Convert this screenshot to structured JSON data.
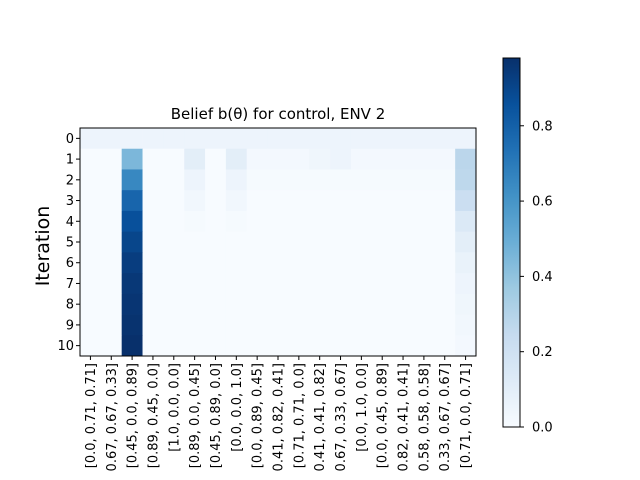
{
  "chart_data": {
    "type": "heatmap",
    "title": "Belief b(θ) for control, ENV 2",
    "xlabel": "",
    "ylabel": "Iteration",
    "colormap": "Blues",
    "colorbar_range": [
      0,
      0.98
    ],
    "colorbar_ticks": [
      "0.0",
      "0.2",
      "0.4",
      "0.6",
      "0.8"
    ],
    "y_ticks": [
      "0",
      "1",
      "2",
      "3",
      "4",
      "5",
      "6",
      "7",
      "8",
      "9",
      "10"
    ],
    "x_tick_labels": [
      "[0.0, 0.71, 0.71]",
      "0.67, 0.67, 0.33]",
      "[0.45, 0.0, 0.89]",
      "[0.89, 0.45, 0.0]",
      "[1.0, 0.0, 0.0]",
      "[0.89, 0.0, 0.45]",
      "[0.45, 0.89, 0.0]",
      "[0.0, 0.0, 1.0]",
      "[0.0, 0.89, 0.45]",
      "0.41, 0.82, 0.41]",
      "[0.71, 0.71, 0.0]",
      "0.41, 0.41, 0.82]",
      "0.67, 0.33, 0.67]",
      "[0.0, 1.0, 0.0]",
      "[0.0, 0.45, 0.89]",
      "0.82, 0.41, 0.41]",
      "0.58, 0.58, 0.58]",
      "0.33, 0.67, 0.67]",
      "[0.71, 0.0, 0.71]"
    ],
    "values": [
      [
        0.05,
        0.05,
        0.05,
        0.05,
        0.05,
        0.05,
        0.05,
        0.05,
        0.05,
        0.05,
        0.05,
        0.05,
        0.05,
        0.05,
        0.05,
        0.05,
        0.05,
        0.05,
        0.05
      ],
      [
        0.0,
        0.0,
        0.45,
        0.0,
        0.0,
        0.1,
        0.0,
        0.1,
        0.02,
        0.02,
        0.02,
        0.04,
        0.05,
        0.02,
        0.02,
        0.02,
        0.02,
        0.02,
        0.28
      ],
      [
        0.0,
        0.0,
        0.65,
        0.0,
        0.0,
        0.05,
        0.0,
        0.05,
        0.01,
        0.01,
        0.01,
        0.01,
        0.01,
        0.01,
        0.01,
        0.01,
        0.01,
        0.01,
        0.27
      ],
      [
        0.0,
        0.0,
        0.78,
        0.0,
        0.0,
        0.03,
        0.0,
        0.03,
        0.0,
        0.0,
        0.0,
        0.0,
        0.0,
        0.0,
        0.0,
        0.0,
        0.0,
        0.0,
        0.22
      ],
      [
        0.0,
        0.0,
        0.86,
        0.0,
        0.0,
        0.01,
        0.0,
        0.01,
        0.0,
        0.0,
        0.0,
        0.0,
        0.0,
        0.0,
        0.0,
        0.0,
        0.0,
        0.0,
        0.14
      ],
      [
        0.0,
        0.0,
        0.9,
        0.0,
        0.0,
        0.0,
        0.0,
        0.0,
        0.0,
        0.0,
        0.0,
        0.0,
        0.0,
        0.0,
        0.0,
        0.0,
        0.0,
        0.0,
        0.1
      ],
      [
        0.0,
        0.0,
        0.93,
        0.0,
        0.0,
        0.0,
        0.0,
        0.0,
        0.0,
        0.0,
        0.0,
        0.0,
        0.0,
        0.0,
        0.0,
        0.0,
        0.0,
        0.0,
        0.07
      ],
      [
        0.0,
        0.0,
        0.95,
        0.0,
        0.0,
        0.0,
        0.0,
        0.0,
        0.0,
        0.0,
        0.0,
        0.0,
        0.0,
        0.0,
        0.0,
        0.0,
        0.0,
        0.0,
        0.05
      ],
      [
        0.0,
        0.0,
        0.96,
        0.0,
        0.0,
        0.0,
        0.0,
        0.0,
        0.0,
        0.0,
        0.0,
        0.0,
        0.0,
        0.0,
        0.0,
        0.0,
        0.0,
        0.0,
        0.04
      ],
      [
        0.0,
        0.0,
        0.97,
        0.0,
        0.0,
        0.0,
        0.0,
        0.0,
        0.0,
        0.0,
        0.0,
        0.0,
        0.0,
        0.0,
        0.0,
        0.0,
        0.0,
        0.0,
        0.03
      ],
      [
        0.0,
        0.0,
        0.98,
        0.0,
        0.0,
        0.0,
        0.0,
        0.0,
        0.0,
        0.0,
        0.0,
        0.0,
        0.0,
        0.0,
        0.0,
        0.0,
        0.0,
        0.0,
        0.02
      ]
    ]
  }
}
